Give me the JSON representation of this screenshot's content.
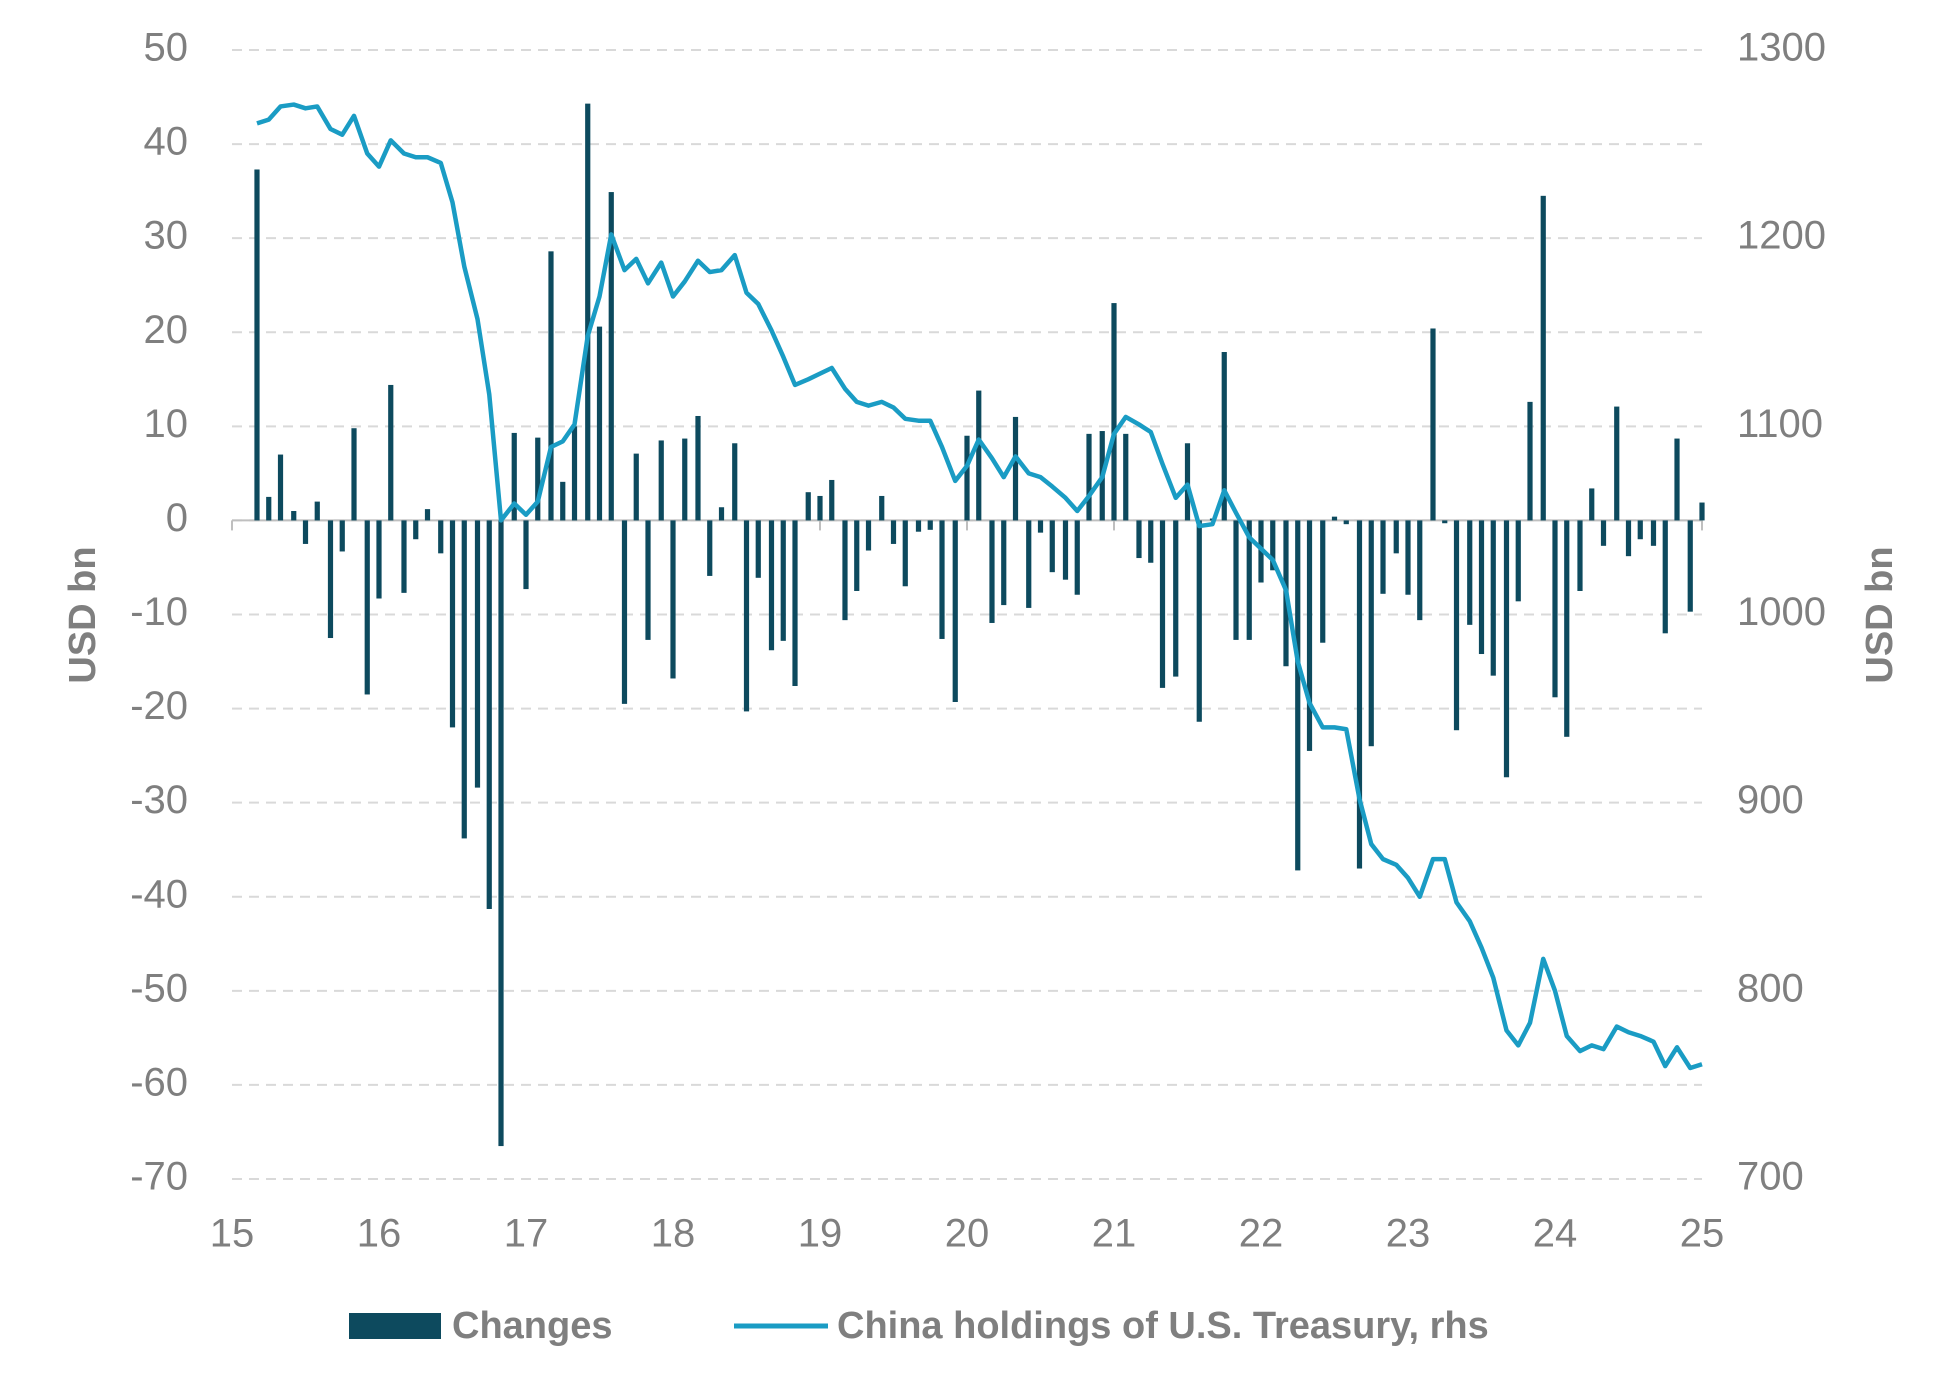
{
  "chart_data": {
    "type": "combo",
    "xlim": [
      15,
      25
    ],
    "xticks": [
      15,
      16,
      17,
      18,
      19,
      20,
      21,
      22,
      23,
      24,
      25
    ],
    "ylim": [
      -70,
      50
    ],
    "yticks": [
      50,
      40,
      30,
      20,
      10,
      0,
      -10,
      -20,
      -30,
      -40,
      -50,
      -60,
      -70
    ],
    "y2lim": [
      700,
      1300
    ],
    "y2ticks": [
      1300,
      1200,
      1100,
      1000,
      900,
      800,
      700
    ],
    "ylabel": "USD bn",
    "y2label": "USD bn",
    "grid": true,
    "legend": "bottom",
    "x": [
      15.17,
      15.25,
      15.33,
      15.42,
      15.5,
      15.58,
      15.67,
      15.75,
      15.83,
      15.92,
      16,
      16.08,
      16.17,
      16.25,
      16.33,
      16.42,
      16.5,
      16.58,
      16.67,
      16.75,
      16.83,
      16.92,
      17,
      17.08,
      17.17,
      17.25,
      17.33,
      17.42,
      17.5,
      17.58,
      17.67,
      17.75,
      17.83,
      17.92,
      18,
      18.08,
      18.17,
      18.25,
      18.33,
      18.42,
      18.5,
      18.58,
      18.67,
      18.75,
      18.83,
      18.92,
      19,
      19.08,
      19.17,
      19.25,
      19.33,
      19.42,
      19.5,
      19.58,
      19.67,
      19.75,
      19.83,
      19.92,
      20,
      20.08,
      20.17,
      20.25,
      20.33,
      20.42,
      20.5,
      20.58,
      20.67,
      20.75,
      20.83,
      20.92,
      21,
      21.08,
      21.17,
      21.25,
      21.33,
      21.42,
      21.5,
      21.58,
      21.67,
      21.75,
      21.83,
      21.92,
      22,
      22.08,
      22.17,
      22.25,
      22.33,
      22.42,
      22.5,
      22.58,
      22.67,
      22.75,
      22.83,
      22.92,
      23,
      23.08,
      23.17,
      23.25,
      23.33,
      23.42,
      23.5,
      23.58,
      23.67,
      23.75,
      23.83,
      23.92,
      24,
      24.08,
      24.17,
      24.25,
      24.33,
      24.42,
      24.5,
      24.58,
      24.67,
      24.75,
      24.83,
      24.92,
      25
    ],
    "series": [
      {
        "name": "Changes",
        "type": "bar",
        "color": "#0d4a5e",
        "values": [
          37.3,
          2.5,
          7,
          1,
          -2.5,
          2,
          -12.5,
          -3.3,
          9.8,
          -18.5,
          -8.3,
          14.4,
          -7.7,
          -2,
          1.2,
          -3.5,
          -22,
          -33.8,
          -28.4,
          -41.3,
          -66.5,
          9.3,
          -7.3,
          8.8,
          28.6,
          4.1,
          10,
          44.3,
          20.6,
          34.9,
          -19.5,
          7.1,
          -12.7,
          8.5,
          -16.8,
          8.7,
          11.1,
          -5.9,
          1.4,
          8.2,
          -20.3,
          -6.1,
          -13.8,
          -12.8,
          -17.6,
          3,
          2.6,
          4.3,
          -10.6,
          -7.5,
          -3.2,
          2.6,
          -2.5,
          -7,
          -1.2,
          -1,
          -12.6,
          -19.3,
          9,
          13.8,
          -10.9,
          -9,
          11,
          -9.3,
          -1.3,
          -5.5,
          -6.3,
          -7.9,
          9.2,
          9.5,
          23.1,
          9.2,
          -4,
          -4.5,
          -17.8,
          -16.6,
          8.2,
          -21.4,
          0.2,
          17.9,
          -12.7,
          -12.7,
          -6.6,
          -5.3,
          -15.5,
          -37.2,
          -24.5,
          -13,
          0.4,
          -0.4,
          -37,
          -24,
          -7.8,
          -3.5,
          -7.9,
          -10.6,
          20.4,
          -0.3,
          -22.3,
          -11.1,
          -14.2,
          -16.5,
          -27.3,
          -8.6,
          12.6,
          34.5,
          -18.8,
          -23,
          -7.5,
          3.4,
          -2.7,
          12.1,
          -3.8,
          -2,
          -2.7,
          -12,
          8.7,
          -9.7,
          1.9
        ]
      },
      {
        "name": "China holdings of U.S. Treasury, rhs",
        "type": "line",
        "axis": "y2",
        "color": "#1a9cc4",
        "values": [
          1261,
          1263,
          1270,
          1271,
          1269,
          1270,
          1258,
          1255,
          1265,
          1245,
          1238,
          1252,
          1245,
          1243,
          1243,
          1240,
          1219,
          1185,
          1157,
          1117,
          1050,
          1059,
          1053,
          1060,
          1089,
          1092,
          1101,
          1148,
          1169,
          1202,
          1183,
          1189,
          1176,
          1187,
          1169,
          1177,
          1188,
          1182,
          1183,
          1191,
          1171,
          1165,
          1151,
          1137,
          1122,
          1125,
          1128,
          1131,
          1120,
          1113,
          1111,
          1113,
          1110,
          1104,
          1103,
          1103,
          1089,
          1071,
          1079,
          1093,
          1083,
          1073,
          1084,
          1075,
          1073,
          1068,
          1062,
          1055,
          1063,
          1073,
          1096,
          1105,
          1101,
          1097,
          1080,
          1062,
          1069,
          1047,
          1048,
          1066,
          1054,
          1041,
          1035,
          1029,
          1013,
          975,
          953,
          940,
          940,
          939,
          902,
          878,
          870,
          867,
          860,
          850,
          870,
          870,
          847,
          837,
          823,
          807,
          779,
          771,
          783,
          817,
          800,
          776,
          768,
          771,
          769,
          781,
          778,
          776,
          773,
          760,
          770,
          759,
          761
        ]
      }
    ]
  }
}
